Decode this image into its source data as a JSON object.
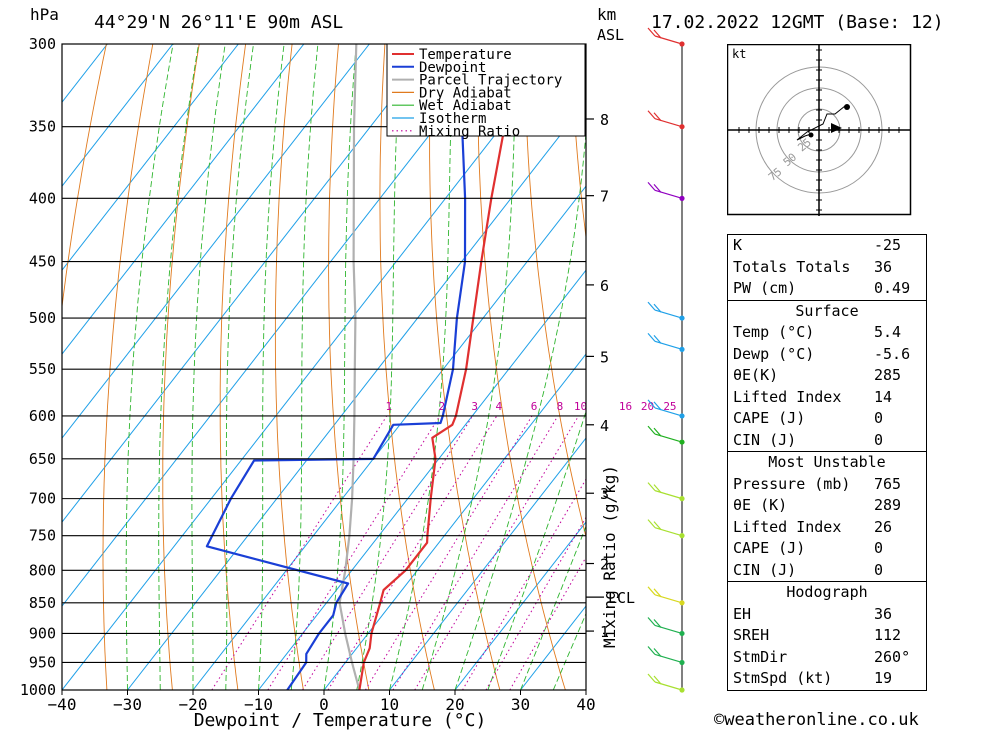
{
  "header": {
    "hpa": "hPa",
    "location": "44°29'N  26°11'E  90m  ASL",
    "km": "km",
    "asl": "ASL",
    "datetime": "17.02.2022  12GMT  (Base: 12)"
  },
  "chart_data": {
    "type": "skew-t",
    "xlabel": "Dewpoint / Temperature (°C)",
    "ylabel": "hPa",
    "y2label": "Mixing Ratio (g/kg)",
    "pressure_levels": [
      300,
      350,
      400,
      450,
      500,
      550,
      600,
      650,
      700,
      750,
      800,
      850,
      900,
      950,
      1000
    ],
    "pressure_labels": [
      "300",
      "350",
      "400",
      "450",
      "500",
      "550",
      "600",
      "650",
      "700",
      "750",
      "800",
      "850",
      "900",
      "950",
      "1000"
    ],
    "x_ticks": [
      -40,
      -30,
      -20,
      -10,
      0,
      10,
      20,
      30,
      40
    ],
    "x_tick_labels": [
      "−40",
      "−30",
      "−20",
      "−10",
      "0",
      "10",
      "20",
      "30",
      "40"
    ],
    "xlim": [
      -40,
      40
    ],
    "ylim": [
      1000,
      300
    ],
    "km_ticks": [
      {
        "label": "8",
        "p": 345
      },
      {
        "label": "7",
        "p": 398
      },
      {
        "label": "6",
        "p": 470
      },
      {
        "label": "5",
        "p": 537
      },
      {
        "label": "4",
        "p": 610
      },
      {
        "label": "3",
        "p": 693
      },
      {
        "label": "2",
        "p": 790
      },
      {
        "label": "1",
        "p": 896
      }
    ],
    "lcl": {
      "label": "LCL",
      "p": 841
    },
    "mixing_ratio_labels": [
      "1",
      "2",
      "3",
      "4",
      "6",
      "8",
      "10",
      "16",
      "20",
      "25"
    ],
    "mixing_ratio_values": [
      1,
      2,
      3,
      4,
      6,
      8,
      10,
      16,
      20,
      25
    ],
    "legend": [
      "Temperature",
      "Dewpoint",
      "Parcel Trajectory",
      "Dry Adiabat",
      "Wet Adiabat",
      "Isotherm",
      "Mixing Ratio"
    ],
    "colors": {
      "temperature": "#e03030",
      "dewpoint": "#1a3fd6",
      "parcel": "#b0b0b0",
      "dry_adiabat": "#e07a1e",
      "wet_adiabat": "#2fb52f",
      "isotherm": "#1fa0e8",
      "mixing_ratio": "#c0009a"
    },
    "temperature": [
      {
        "p": 1000,
        "t": 5.4
      },
      {
        "p": 950,
        "t": 2.8
      },
      {
        "p": 925,
        "t": 2.0
      },
      {
        "p": 900,
        "t": 0.5
      },
      {
        "p": 850,
        "t": -1.8
      },
      {
        "p": 830,
        "t": -2.8
      },
      {
        "p": 800,
        "t": -1.8
      },
      {
        "p": 760,
        "t": -1.8
      },
      {
        "p": 750,
        "t": -2.6
      },
      {
        "p": 700,
        "t": -6.5
      },
      {
        "p": 650,
        "t": -10.5
      },
      {
        "p": 625,
        "t": -13.5
      },
      {
        "p": 610,
        "t": -12.0
      },
      {
        "p": 600,
        "t": -12.5
      },
      {
        "p": 550,
        "t": -16.5
      },
      {
        "p": 500,
        "t": -21.5
      },
      {
        "p": 450,
        "t": -27.0
      },
      {
        "p": 400,
        "t": -33.0
      },
      {
        "p": 350,
        "t": -39.5
      },
      {
        "p": 300,
        "t": -47.0
      }
    ],
    "dewpoint": [
      {
        "p": 1000,
        "t": -5.6
      },
      {
        "p": 950,
        "t": -6.0
      },
      {
        "p": 935,
        "t": -7.0
      },
      {
        "p": 900,
        "t": -7.5
      },
      {
        "p": 870,
        "t": -7.5
      },
      {
        "p": 850,
        "t": -8.5
      },
      {
        "p": 820,
        "t": -9.0
      },
      {
        "p": 765,
        "t": -35.0
      },
      {
        "p": 700,
        "t": -37.0
      },
      {
        "p": 652,
        "t": -38.0
      },
      {
        "p": 650,
        "t": -20.0
      },
      {
        "p": 610,
        "t": -21.0
      },
      {
        "p": 608,
        "t": -14.0
      },
      {
        "p": 600,
        "t": -14.5
      },
      {
        "p": 550,
        "t": -18.5
      },
      {
        "p": 500,
        "t": -24.0
      },
      {
        "p": 450,
        "t": -29.5
      },
      {
        "p": 400,
        "t": -37.0
      },
      {
        "p": 350,
        "t": -46.0
      },
      {
        "p": 300,
        "t": -54.0
      }
    ],
    "parcel": [
      {
        "p": 1000,
        "t": 5.4
      },
      {
        "p": 950,
        "t": 1.0
      },
      {
        "p": 900,
        "t": -3.5
      },
      {
        "p": 850,
        "t": -8.0
      },
      {
        "p": 800,
        "t": -11.0
      },
      {
        "p": 750,
        "t": -14.5
      },
      {
        "p": 700,
        "t": -18.5
      },
      {
        "p": 650,
        "t": -23.0
      },
      {
        "p": 600,
        "t": -28.0
      },
      {
        "p": 550,
        "t": -33.5
      },
      {
        "p": 500,
        "t": -39.5
      },
      {
        "p": 450,
        "t": -46.5
      },
      {
        "p": 400,
        "t": -54.0
      },
      {
        "p": 350,
        "t": -62.5
      },
      {
        "p": 300,
        "t": -72.0
      }
    ],
    "wind_barbs": [
      {
        "p": 300,
        "color": "#e03030"
      },
      {
        "p": 350,
        "color": "#e03030"
      },
      {
        "p": 400,
        "color": "#9000c0"
      },
      {
        "p": 500,
        "color": "#1fa0e8"
      },
      {
        "p": 530,
        "color": "#1fa0e8"
      },
      {
        "p": 600,
        "color": "#1fa0e8"
      },
      {
        "p": 630,
        "color": "#20b020"
      },
      {
        "p": 700,
        "color": "#a8e030"
      },
      {
        "p": 750,
        "color": "#a8e030"
      },
      {
        "p": 850,
        "color": "#d8d820"
      },
      {
        "p": 900,
        "color": "#20b050"
      },
      {
        "p": 950,
        "color": "#20b050"
      },
      {
        "p": 1000,
        "color": "#a8e030"
      }
    ],
    "hodograph": {
      "unit": "kt",
      "ring_labels": [
        "25",
        "50",
        "75"
      ]
    }
  },
  "stats": {
    "k_label": "K",
    "k_value": "-25",
    "tt_label": "Totals Totals",
    "tt_value": "36",
    "pw_label": "PW (cm)",
    "pw_value": "0.49",
    "surface_title": "Surface",
    "surface": [
      {
        "label": "Temp (°C)",
        "value": "5.4"
      },
      {
        "label": "Dewp (°C)",
        "value": "-5.6"
      },
      {
        "label": "θE(K)",
        "value": "285"
      },
      {
        "label": "Lifted Index",
        "value": "14"
      },
      {
        "label": "CAPE (J)",
        "value": "0"
      },
      {
        "label": "CIN (J)",
        "value": "0"
      }
    ],
    "mu_title": "Most Unstable",
    "mu": [
      {
        "label": "Pressure (mb)",
        "value": "765"
      },
      {
        "label": "θE (K)",
        "value": "289"
      },
      {
        "label": "Lifted Index",
        "value": "26"
      },
      {
        "label": "CAPE (J)",
        "value": "0"
      },
      {
        "label": "CIN (J)",
        "value": "0"
      }
    ],
    "hodo_title": "Hodograph",
    "hodo": [
      {
        "label": "EH",
        "value": "36"
      },
      {
        "label": "SREH",
        "value": "112"
      },
      {
        "label": "StmDir",
        "value": "260°"
      },
      {
        "label": "StmSpd (kt)",
        "value": "19"
      }
    ]
  },
  "footer": "©weatheronline.co.uk"
}
